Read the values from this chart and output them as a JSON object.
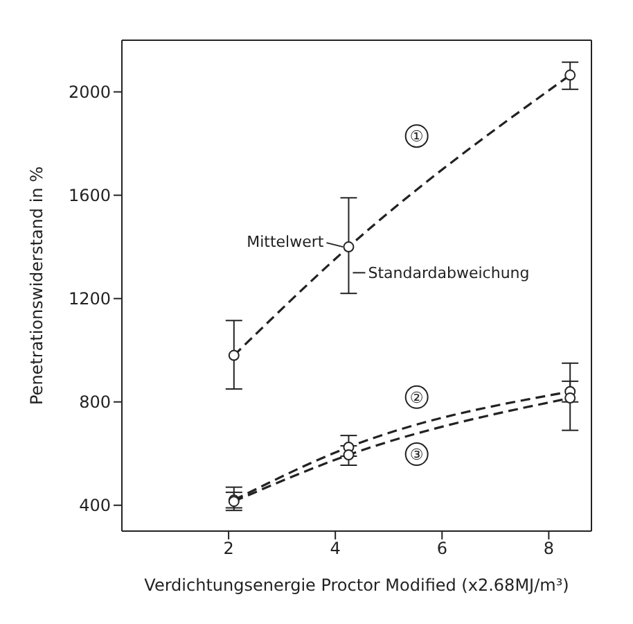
{
  "chart_data": {
    "type": "line",
    "xlabel": "Verdichtungsenergie Proctor Modified (x2.68MJ/m³)",
    "ylabel": "Penetrationswiderstand in %",
    "xlim": [
      0,
      8.8
    ],
    "xticks": [
      2,
      4,
      6,
      8
    ],
    "ylim": [
      300,
      2200
    ],
    "yticks": [
      400,
      800,
      1200,
      1600,
      2000
    ],
    "grid": false,
    "legend": false,
    "marker": "circle",
    "line_style": "dashed",
    "series": [
      {
        "name": "①",
        "color": "#222222",
        "x": [
          2.1,
          4.25,
          8.4
        ],
        "values": [
          980,
          1400,
          2065
        ],
        "errors": [
          [
            850,
            1115
          ],
          [
            1220,
            1590
          ],
          [
            2010,
            2115
          ]
        ]
      },
      {
        "name": "②",
        "color": "#222222",
        "x": [
          2.1,
          4.25,
          8.4
        ],
        "values": [
          420,
          625,
          840
        ],
        "errors": [
          [
            380,
            470
          ],
          [
            590,
            670
          ],
          [
            800,
            880
          ]
        ]
      },
      {
        "name": "③",
        "color": "#222222",
        "x": [
          2.1,
          4.25,
          8.4
        ],
        "values": [
          415,
          595,
          815
        ],
        "errors": [
          [
            390,
            450
          ],
          [
            555,
            630
          ],
          [
            690,
            950
          ]
        ]
      }
    ],
    "annotations": [
      {
        "text": "Mittelwert",
        "x": 4.25,
        "y": 1400
      },
      {
        "text": "Standardabweichung",
        "x": 4.25,
        "y": 1300
      }
    ]
  }
}
